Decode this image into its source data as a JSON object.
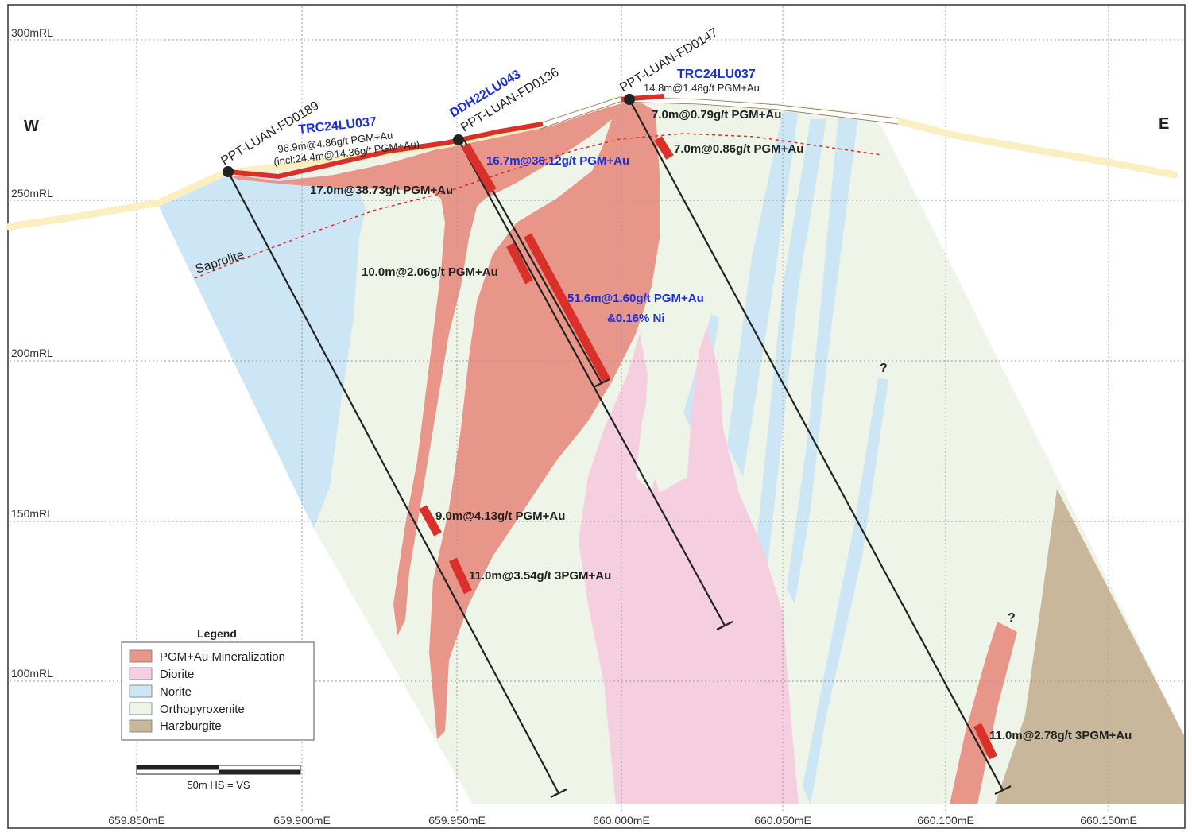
{
  "section": {
    "west_label": "W",
    "east_label": "E",
    "rl_labels": [
      "300mRL",
      "250mRL",
      "200mRL",
      "150mRL",
      "100mRL"
    ],
    "me_labels": [
      "659.850mE",
      "659.900mE",
      "659.950mE",
      "660.000mE",
      "660.050mE",
      "660.100mE",
      "660.150mE"
    ],
    "saprolite_label": "Saprolite",
    "question_mark": "?"
  },
  "holes": {
    "fd0189": "PPT-LUAN-FD0189",
    "fd0136": "PPT-LUAN-FD0136",
    "fd0147": "PPT-LUAN-FD0147",
    "ddh22lu043": "DDH22LU043",
    "trc_west": "TRC24LU037",
    "trc_east": "TRC24LU037"
  },
  "intercepts": {
    "trc_west_main": "96.9m@4.86g/t PGM+Au",
    "trc_west_incl": "(incl:24.4m@14.36g/t PGM+Au)",
    "trc_east_main": "14.8m@1.48g/t PGM+Au",
    "i_7_0_079": "7.0m@0.79g/t PGM+Au",
    "i_7_0_086": "7.0m@0.86g/t PGM+Au",
    "i_16_7": "16.7m@36.12g/t PGM+Au",
    "i_17_0": "17.0m@38.73g/t PGM+Au",
    "i_10_0": "10.0m@2.06g/t PGM+Au",
    "i_51_6": "51.6m@1.60g/t PGM+Au",
    "i_51_6_ni": "&0.16% Ni",
    "i_9_0": "9.0m@4.13g/t PGM+Au",
    "i_11_0_354": "11.0m@3.54g/t 3PGM+Au",
    "i_11_0_278": "11.0m@2.78g/t 3PGM+Au"
  },
  "legend": {
    "title": "Legend",
    "items": [
      {
        "label": "PGM+Au Mineralization",
        "color": "#e8968a"
      },
      {
        "label": "Diorite",
        "color": "#f5cfe0"
      },
      {
        "label": "Norite",
        "color": "#cde6f5"
      },
      {
        "label": "Orthopyroxenite",
        "color": "#eef4e8"
      },
      {
        "label": "Harzburgite",
        "color": "#c8b79a"
      }
    ]
  },
  "scale_bar": {
    "label": "50m  HS = VS"
  },
  "colors": {
    "mineralization": "#e8968a",
    "diorite": "#f5cfe0",
    "norite": "#cde6f5",
    "orthopyroxenite": "#eef4e8",
    "harzburgite": "#c8b79a",
    "intercept_red": "#d9302a",
    "blue_text": "#1a2fd6",
    "topography": "#fbeec0"
  }
}
